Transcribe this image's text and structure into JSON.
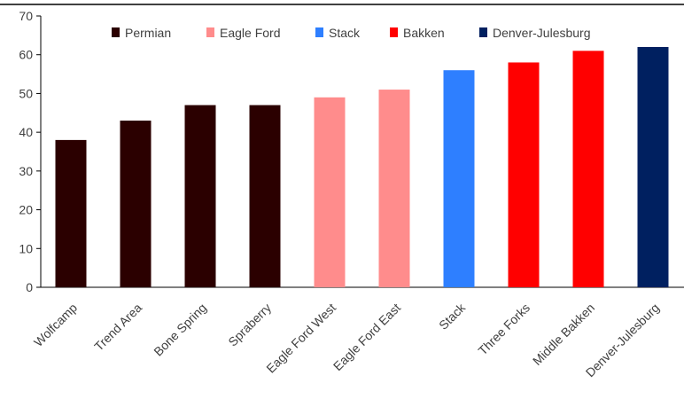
{
  "chart_data": {
    "type": "bar",
    "title": "",
    "xlabel": "",
    "ylabel": "",
    "ylim": [
      0,
      70
    ],
    "yticks": [
      0,
      10,
      20,
      30,
      40,
      50,
      60,
      70
    ],
    "grid": false,
    "legend_position": "top",
    "categories": [
      "Wolfcamp",
      "Trend Area",
      "Bone Spring",
      "Spraberry",
      "Eagle Ford West",
      "Eagle Ford East",
      "Stack",
      "Three Forks",
      "Middle Bakken",
      "Denver-Julesburg"
    ],
    "values": [
      38,
      43,
      47,
      47,
      49,
      51,
      56,
      58,
      61,
      62
    ],
    "groups": [
      "Permian",
      "Permian",
      "Permian",
      "Permian",
      "Eagle Ford",
      "Eagle Ford",
      "Stack",
      "Bakken",
      "Bakken",
      "Denver-Julesburg"
    ],
    "legend": [
      {
        "name": "Permian",
        "color": "#2b0000"
      },
      {
        "name": "Eagle Ford",
        "color": "#ff8c8c"
      },
      {
        "name": "Stack",
        "color": "#2e7fff"
      },
      {
        "name": "Bakken",
        "color": "#ff0000"
      },
      {
        "name": "Denver-Julesburg",
        "color": "#002060"
      }
    ]
  }
}
